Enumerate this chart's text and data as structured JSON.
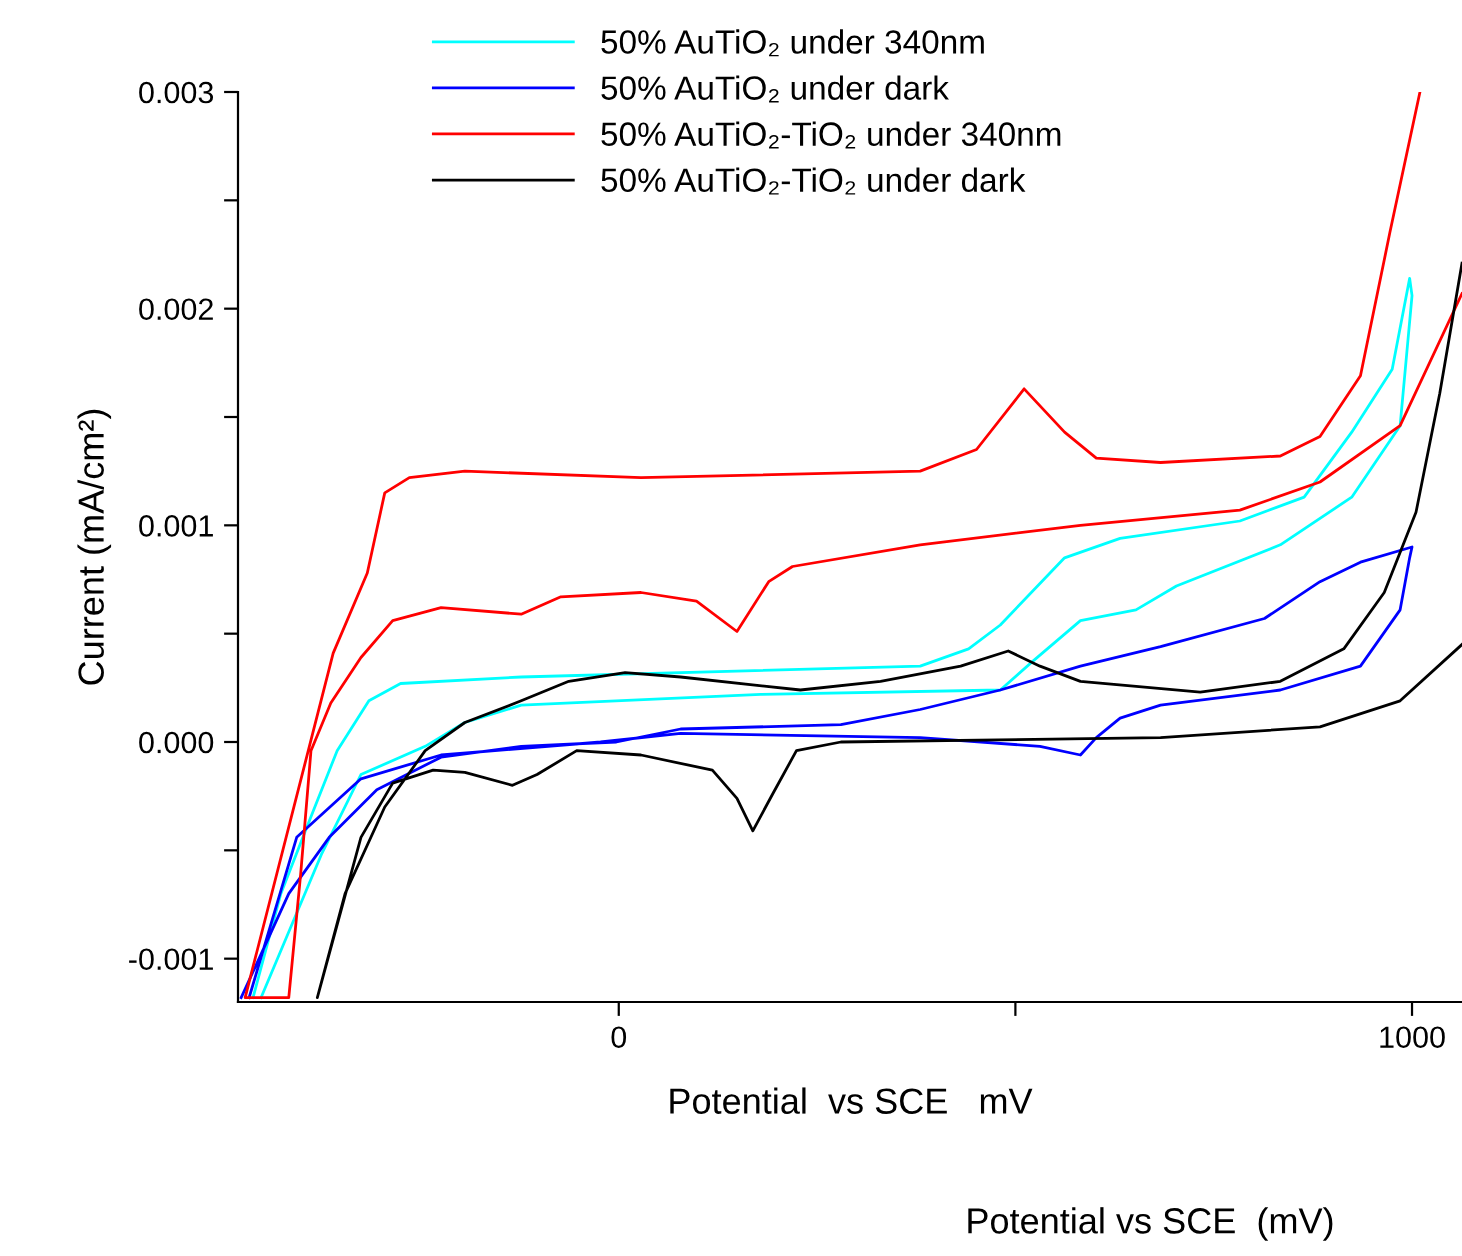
{
  "chart_data": {
    "type": "line",
    "xlabel": "Potential  vs SCE   mV",
    "ylabel": "Current (mA/cm²)",
    "annotations": [
      "Potential vs SCE  (mV)"
    ],
    "xlim": [
      -480,
      1063
    ],
    "ylim": [
      -0.0012,
      0.003
    ],
    "xticks": [
      {
        "value": 0,
        "label": "0"
      },
      {
        "value": 500,
        "label": null
      },
      {
        "value": 1000,
        "label": "1000"
      }
    ],
    "yticks": [
      {
        "value": -0.001,
        "label": "-0.001"
      },
      {
        "value": -0.0005,
        "label": null
      },
      {
        "value": 0,
        "label": "0.000"
      },
      {
        "value": 0.0005,
        "label": null
      },
      {
        "value": 0.001,
        "label": "0.001"
      },
      {
        "value": 0.0015,
        "label": null
      },
      {
        "value": 0.002,
        "label": "0.002"
      },
      {
        "value": 0.0025,
        "label": null
      },
      {
        "value": 0.003,
        "label": "0.003"
      }
    ],
    "grid": false,
    "legend": "top left",
    "marker": "none",
    "line_style": "solid",
    "series": [
      {
        "name": "50% AuTiO₂ under 340nm",
        "color": "#00ffff",
        "x": [
          -461,
          -426,
          -395,
          -355,
          -315,
          -275,
          -123,
          380,
          441,
          481,
          562,
          632,
          783,
          864,
          924,
          975,
          997,
          1000,
          985,
          924,
          834,
          703,
          652,
          582,
          521,
          481,
          179,
          -123,
          -194,
          -244,
          -325,
          -375,
          -451
        ],
        "values": [
          -0.00118,
          -0.0007,
          -0.00041,
          -4e-05,
          0.00019,
          0.00027,
          0.0003,
          0.00035,
          0.00043,
          0.00054,
          0.00085,
          0.00094,
          0.00102,
          0.00113,
          0.00143,
          0.00172,
          0.00214,
          0.00206,
          0.00146,
          0.00113,
          0.00091,
          0.00072,
          0.00061,
          0.00056,
          0.00037,
          0.00024,
          0.00022,
          0.00017,
          9e-05,
          -2e-05,
          -0.00015,
          -0.00052,
          -0.00118
        ]
      },
      {
        "name": "50% AuTiO₂ under dark",
        "color": "#0000ff",
        "x": [
          -476,
          -416,
          -365,
          -305,
          -224,
          -123,
          -3,
          78,
          280,
          380,
          481,
          582,
          683,
          814,
          884,
          935,
          1000,
          997,
          985,
          935,
          834,
          683,
          632,
          602,
          582,
          531,
          380,
          78,
          -23,
          -224,
          -325,
          -406,
          -466
        ],
        "values": [
          -0.00118,
          -0.0007,
          -0.00044,
          -0.00022,
          -7e-05,
          -2e-05,
          0.0,
          6e-05,
          8e-05,
          0.00015,
          0.00024,
          0.00035,
          0.00044,
          0.00057,
          0.00074,
          0.00083,
          0.0009,
          0.00085,
          0.00061,
          0.00035,
          0.00024,
          0.00017,
          0.00011,
          2e-05,
          -6e-05,
          -2e-05,
          2e-05,
          4e-05,
          0.0,
          -6e-05,
          -0.00017,
          -0.00044,
          -0.00118
        ]
      },
      {
        "name": "50% AuTiO₂-TiO₂ under 340nm",
        "color": "#ff0000",
        "x": [
          1010,
          972,
          935,
          884,
          834,
          683,
          602,
          562,
          511,
          451,
          380,
          28,
          -194,
          -264,
          -295,
          -317,
          -360,
          -471,
          -416,
          -401,
          -388,
          -363,
          -325,
          -285,
          -224,
          -123,
          -73,
          28,
          98,
          149,
          189,
          219,
          380,
          582,
          783,
          884,
          985,
          1063
        ],
        "values": [
          0.003,
          0.00235,
          0.00169,
          0.00141,
          0.00132,
          0.00129,
          0.00131,
          0.00143,
          0.00163,
          0.00135,
          0.00125,
          0.00122,
          0.00125,
          0.00122,
          0.00115,
          0.00078,
          0.00041,
          -0.00118,
          -0.00118,
          -0.00061,
          -4e-05,
          0.00018,
          0.00039,
          0.00056,
          0.00062,
          0.00059,
          0.00067,
          0.00069,
          0.00065,
          0.00051,
          0.00074,
          0.00081,
          0.00091,
          0.001,
          0.00107,
          0.0012,
          0.00146,
          0.00207
        ]
      },
      {
        "name": "50% AuTiO₂-TiO₂ under dark",
        "color": "#000000",
        "x": [
          1063,
          1035,
          1005,
          965,
          914,
          834,
          733,
          582,
          531,
          491,
          431,
          330,
          229,
          78,
          8,
          -63,
          -123,
          -194,
          -244,
          -295,
          -345,
          -380,
          -325,
          -285,
          -234,
          -194,
          -134,
          -103,
          -53,
          28,
          118,
          149,
          169,
          194,
          224,
          280,
          683,
          884,
          985,
          1063
        ],
        "values": [
          0.00221,
          0.00161,
          0.00106,
          0.00069,
          0.00043,
          0.00028,
          0.00023,
          0.00028,
          0.00035,
          0.00042,
          0.00035,
          0.00028,
          0.00024,
          0.0003,
          0.00032,
          0.00028,
          0.00019,
          9e-05,
          -4e-05,
          -0.0003,
          -0.0007,
          -0.00118,
          -0.00044,
          -0.00019,
          -0.00013,
          -0.00014,
          -0.0002,
          -0.00015,
          -4e-05,
          -6e-05,
          -0.00013,
          -0.00026,
          -0.00041,
          -0.00024,
          -4e-05,
          0.0,
          2e-05,
          7e-05,
          0.00019,
          0.00045
        ]
      }
    ]
  }
}
